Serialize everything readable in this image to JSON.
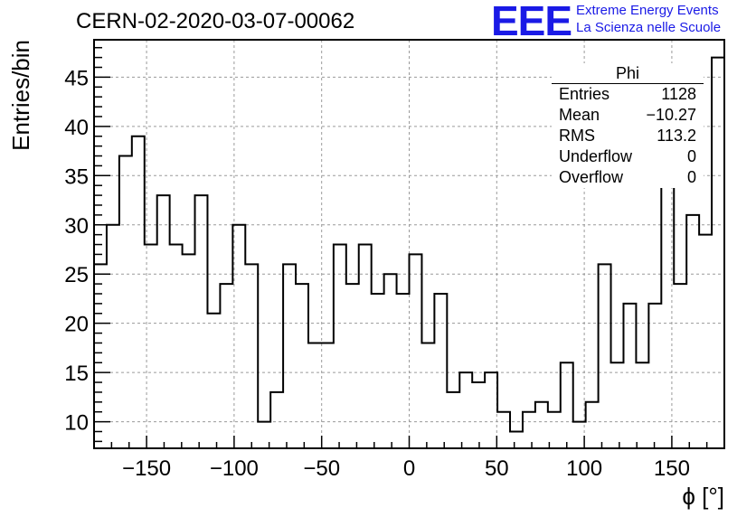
{
  "header": {
    "run_title": "CERN-02-2020-03-07-00062",
    "logo": "EEE",
    "logo_line1": "Extreme Energy Events",
    "logo_line2": "La Scienza nelle Scuole"
  },
  "stats_box": {
    "title": "Phi",
    "rows": [
      {
        "label": "Entries",
        "value": "1128"
      },
      {
        "label": "Mean",
        "value": "−10.27"
      },
      {
        "label": "RMS",
        "value": "113.2"
      },
      {
        "label": "Underflow",
        "value": "0"
      },
      {
        "label": "Overflow",
        "value": "0"
      }
    ]
  },
  "colors": {
    "logo": "#1a1ae6",
    "line": "#000000",
    "grid": "#9a9a9a"
  },
  "chart_data": {
    "type": "bar",
    "style": "step histogram",
    "title": "",
    "xlabel": "ϕ [°]",
    "ylabel": "Entries/bin",
    "xlim": [
      -180,
      180
    ],
    "ylim": [
      7.3,
      48.8
    ],
    "bin_width": 7.2,
    "xticks": [
      -150,
      -100,
      -50,
      0,
      50,
      100,
      150
    ],
    "xtick_labels": [
      "−150",
      "−100",
      "−50",
      "0",
      "50",
      "100",
      "150"
    ],
    "yticks": [
      10,
      15,
      20,
      25,
      30,
      35,
      40,
      45
    ],
    "ytick_labels": [
      "10",
      "15",
      "20",
      "25",
      "30",
      "35",
      "40",
      "45"
    ],
    "grid": true,
    "bin_low_edges": [
      -180,
      -172.8,
      -165.6,
      -158.4,
      -151.2,
      -144,
      -136.8,
      -129.6,
      -122.4,
      -115.2,
      -108,
      -100.8,
      -93.6,
      -86.4,
      -79.2,
      -72,
      -64.8,
      -57.6,
      -50.4,
      -43.2,
      -36,
      -28.8,
      -21.6,
      -14.4,
      -7.2,
      0,
      7.2,
      14.4,
      21.6,
      28.8,
      36,
      43.2,
      50.4,
      57.6,
      64.8,
      72,
      79.2,
      86.4,
      93.6,
      100.8,
      108,
      115.2,
      122.4,
      129.6,
      136.8,
      144,
      151.2,
      158.4,
      165.6,
      172.8
    ],
    "values": [
      26,
      30,
      37,
      39,
      28,
      33,
      28,
      27,
      33,
      21,
      24,
      30,
      26,
      10,
      13,
      26,
      24,
      18,
      18,
      28,
      24,
      28,
      23,
      25,
      23,
      27,
      18,
      23,
      13,
      15,
      14,
      15,
      11,
      9,
      11,
      12,
      11,
      16,
      10,
      12,
      26,
      16,
      22,
      16,
      22,
      36,
      24,
      31,
      29,
      47
    ]
  }
}
